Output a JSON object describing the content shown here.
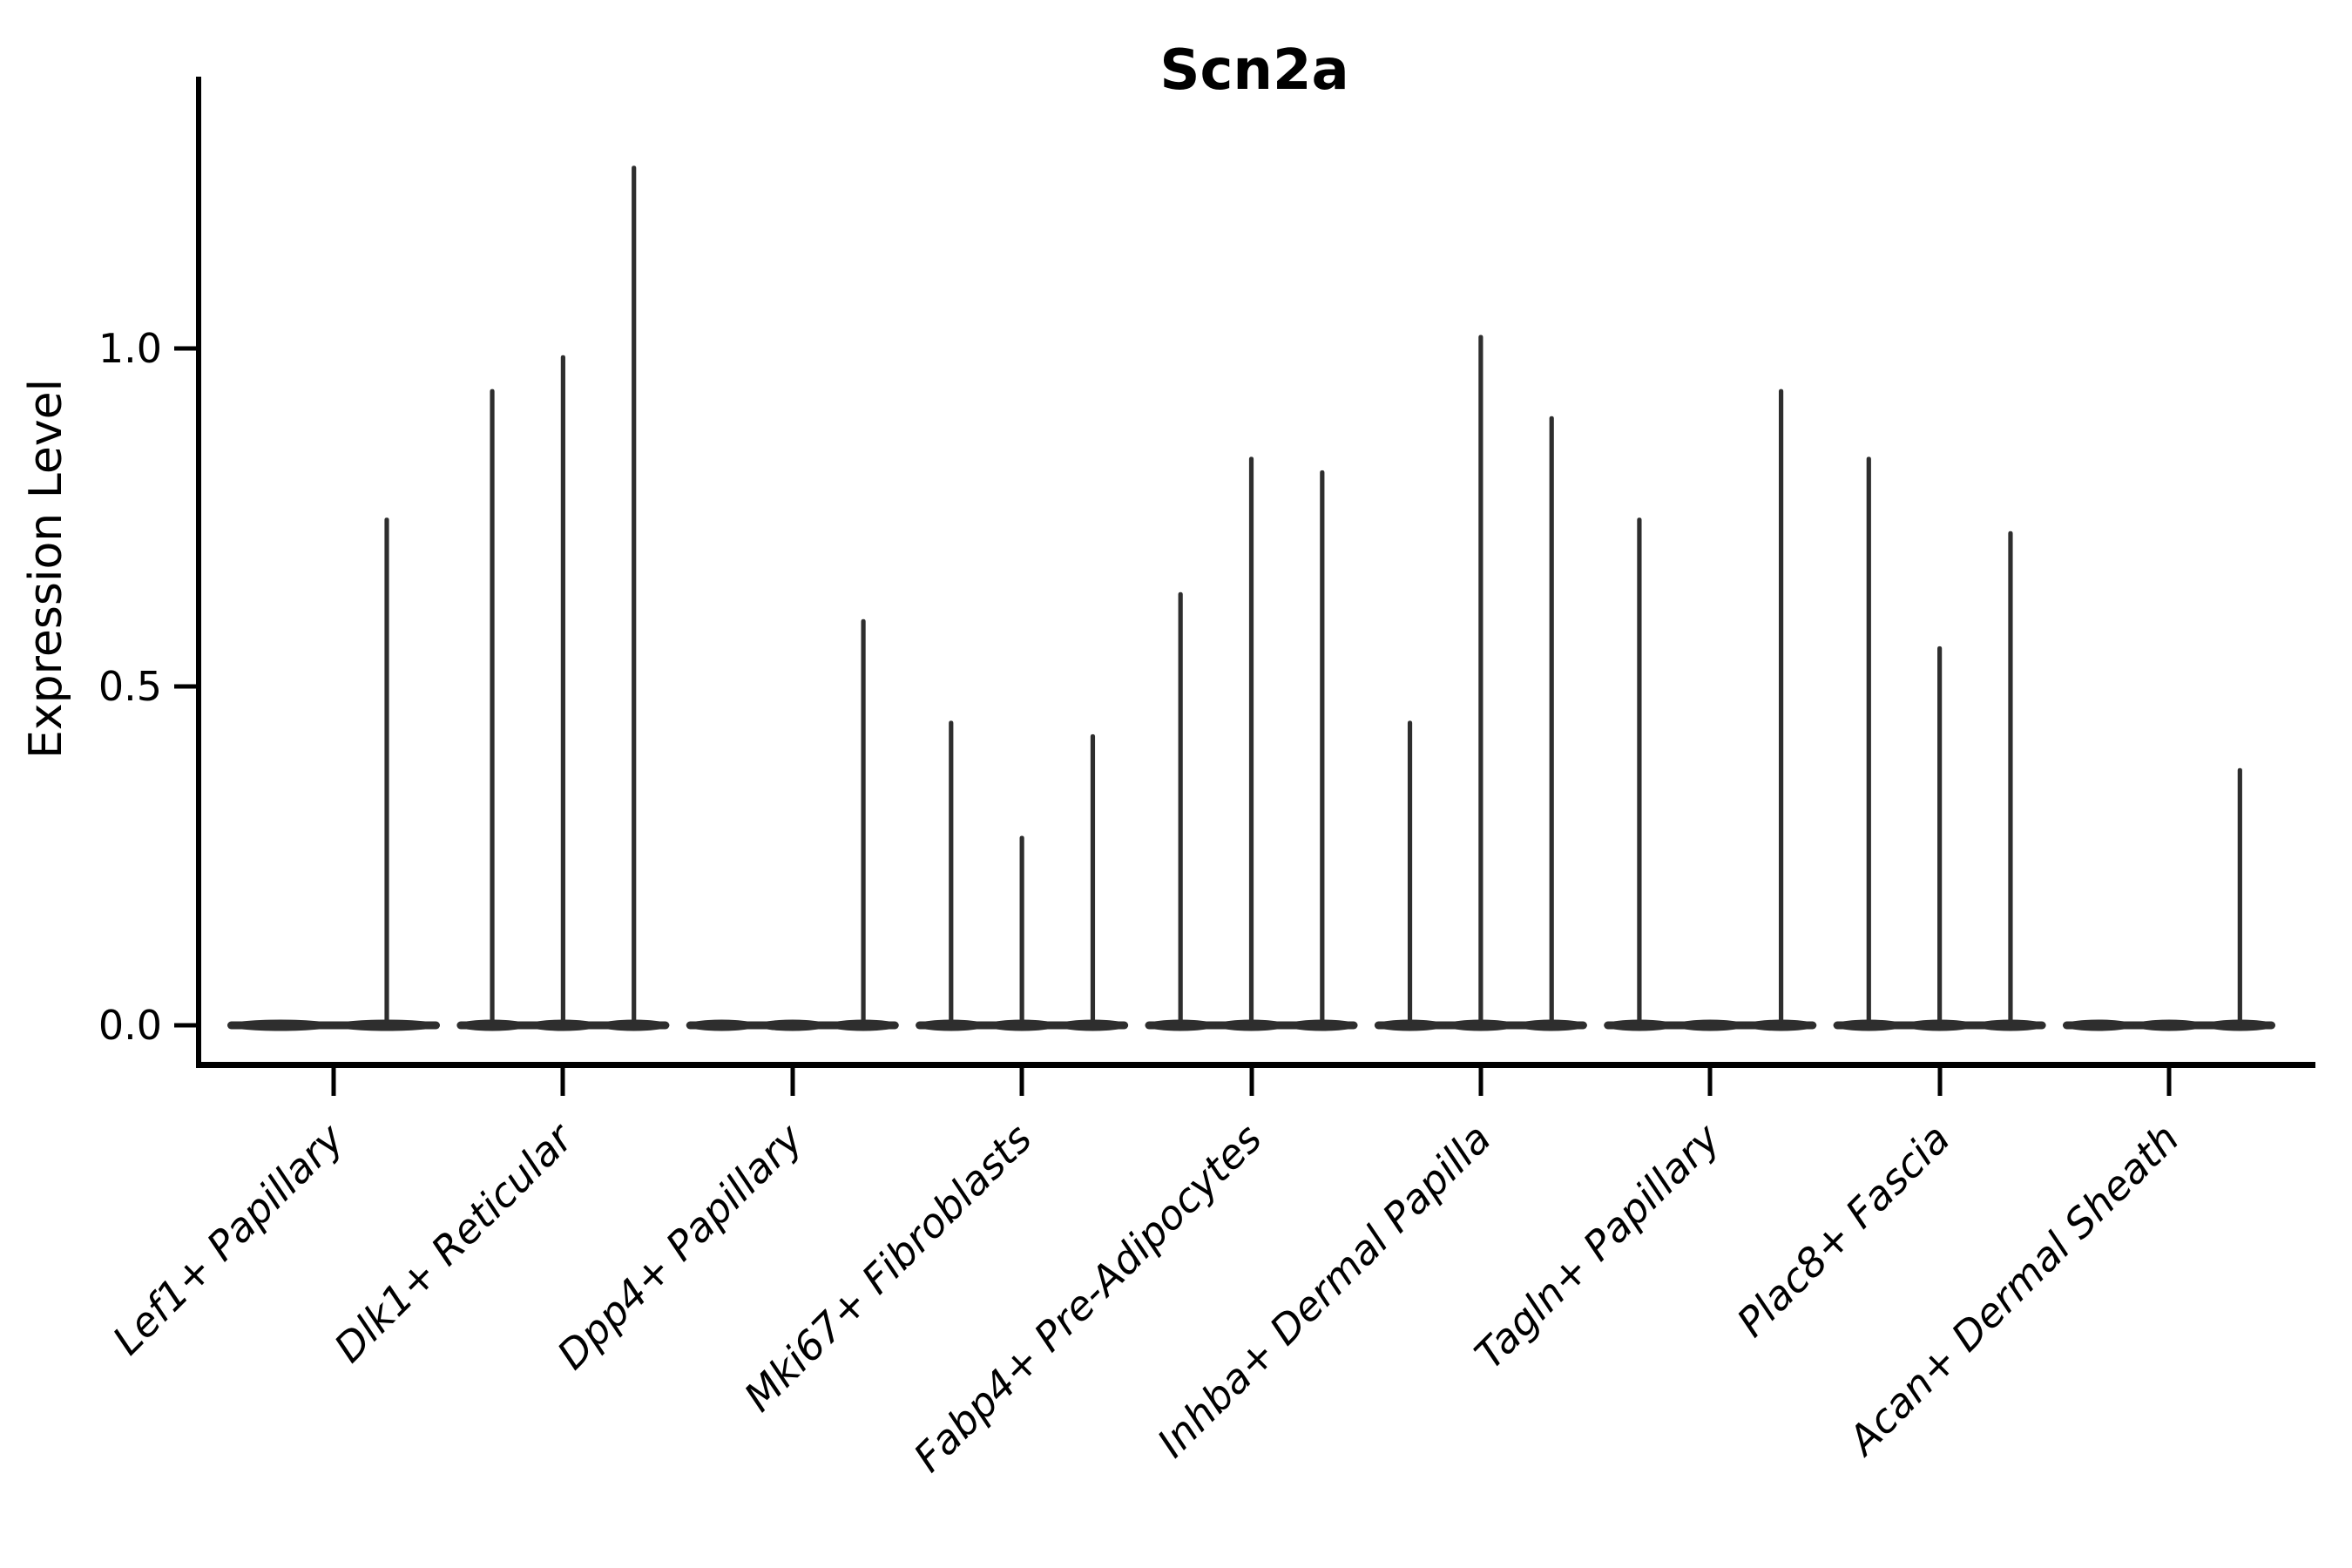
{
  "title": "Scn2a",
  "ylabel": "Expression Level",
  "ytick_labels": [
    "0.0",
    "0.5",
    "1.0"
  ],
  "chart_data": {
    "type": "violin",
    "title": "Scn2a",
    "xlabel": "",
    "ylabel": "Expression Level",
    "ylim": [
      -0.06,
      1.41
    ],
    "yticks": [
      0.0,
      0.5,
      1.0
    ],
    "grid": false,
    "legend": "none",
    "violin_color": "#2e2e2e",
    "categories": [
      "Lef1+ Papillary",
      "Dlk1+ Reticular",
      "Dpp4+ Papillary",
      "Mki67+ Fibroblasts",
      "Fabp4+ Pre-Adipocytes",
      "Inhba+ Dermal Papilla",
      "Tagln+ Papillary",
      "Plac8+ Fascia",
      "Acan+ Dermal Sheath"
    ],
    "series_note": "each category holds side-by-side violins; value = max expression reached by each violin spike (0 = flat violin at baseline)",
    "violins": [
      [
        0,
        0.75
      ],
      [
        0.94,
        0.99,
        1.27
      ],
      [
        0,
        0,
        0.6
      ],
      [
        0.45,
        0.28,
        0.43
      ],
      [
        0.64,
        0.84,
        0.82
      ],
      [
        0.45,
        1.02,
        0.9
      ],
      [
        0.75,
        0,
        0.94
      ],
      [
        0.84,
        0.56,
        0.73
      ],
      [
        0,
        0,
        0.38
      ]
    ]
  }
}
